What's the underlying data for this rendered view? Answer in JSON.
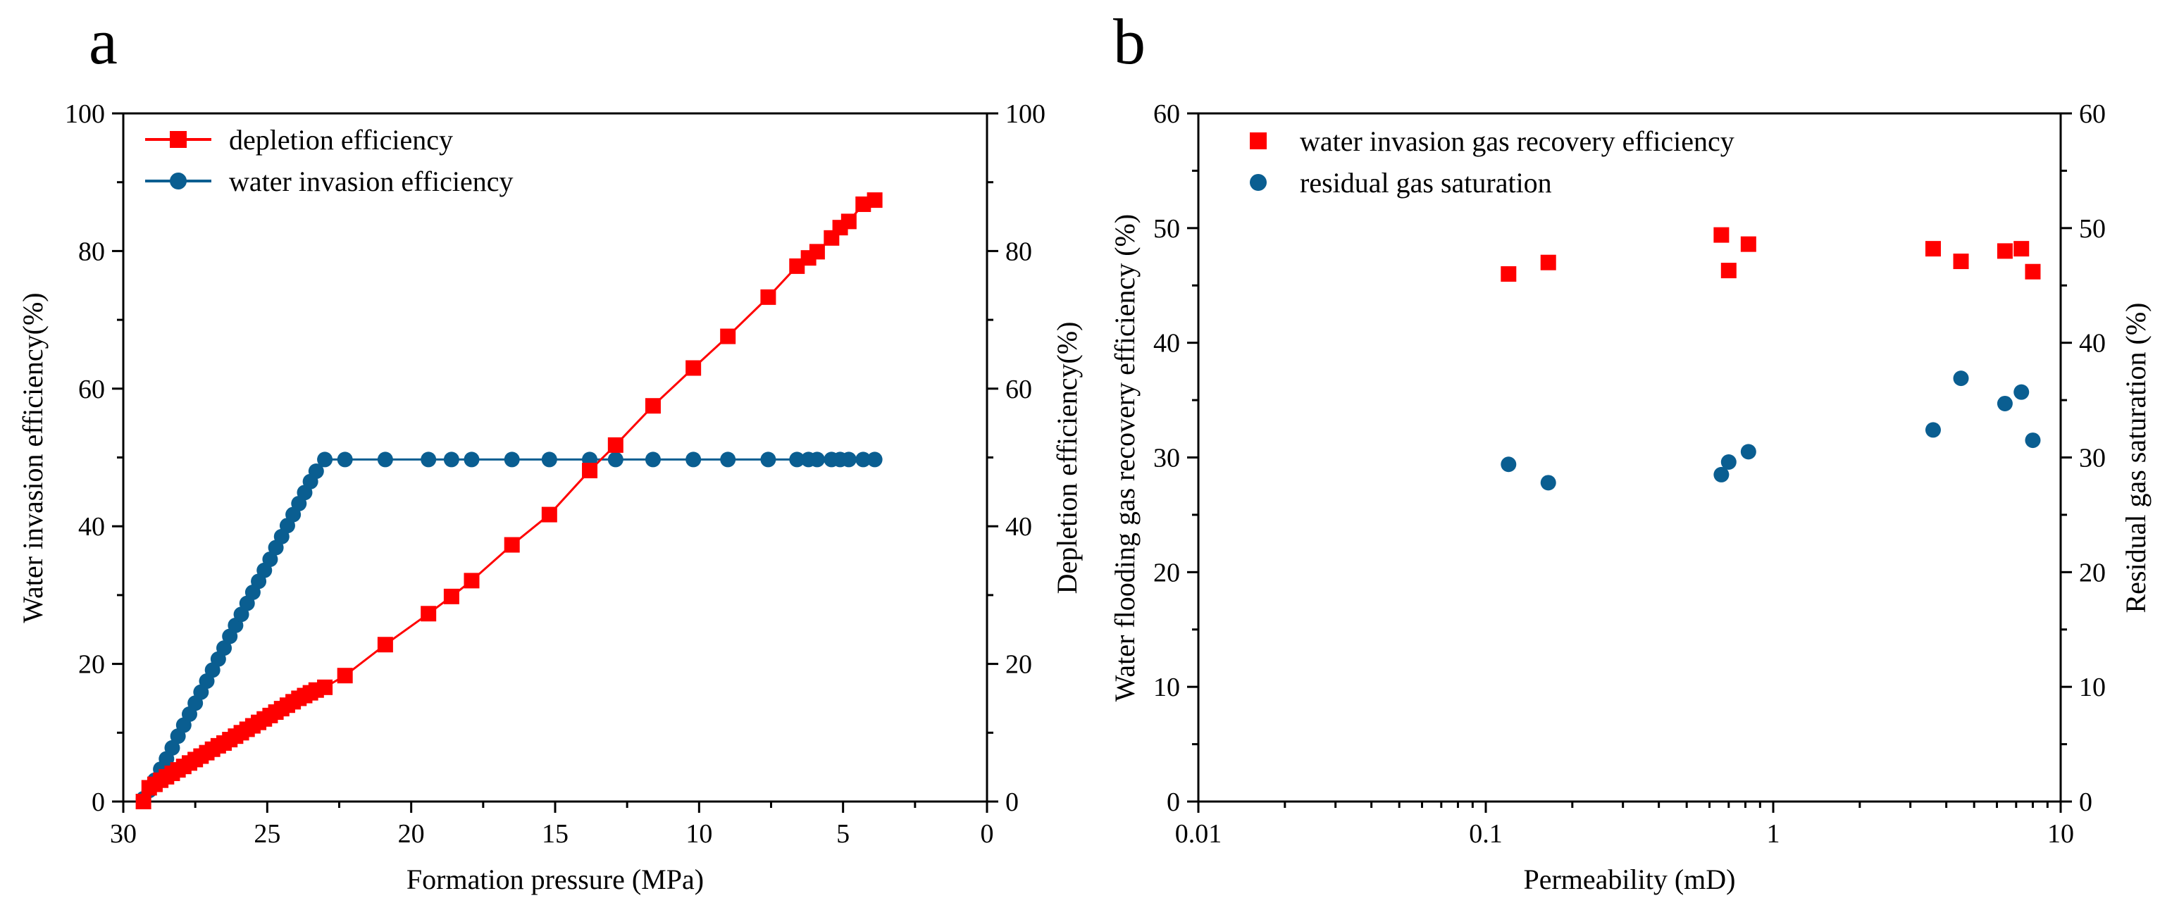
{
  "colors": {
    "red": "#ff0000",
    "blue": "#0a5e91"
  },
  "chart_data": [
    {
      "panel_label": "a",
      "type": "line",
      "xlabel": "Formation pressure (MPa)",
      "ylabel_left": "Water invasion efficiency(%)",
      "ylabel_right": "Depletion efficiency(%)",
      "xlim": [
        30,
        0
      ],
      "ylim": [
        0,
        100
      ],
      "x_ticks": [
        30,
        25,
        20,
        15,
        10,
        5,
        0
      ],
      "y_ticks": [
        0,
        20,
        40,
        60,
        80,
        100
      ],
      "legend_position": "top-left",
      "series": [
        {
          "name": "depletion efficiency",
          "marker": "square",
          "x": [
            29.3,
            29.1,
            28.9,
            28.7,
            28.5,
            28.3,
            28.1,
            27.9,
            27.7,
            27.5,
            27.3,
            27.1,
            26.9,
            26.7,
            26.5,
            26.3,
            26.1,
            25.9,
            25.7,
            25.5,
            25.3,
            25.1,
            24.9,
            24.7,
            24.5,
            24.3,
            24.1,
            23.9,
            23.7,
            23.5,
            23.3,
            23.0,
            22.3,
            20.9,
            19.4,
            18.6,
            17.9,
            16.5,
            15.2,
            13.8,
            12.9,
            11.6,
            10.2,
            9.0,
            7.6,
            6.6,
            6.2,
            5.9,
            5.4,
            5.1,
            4.8,
            4.3,
            3.9
          ],
          "values": [
            0.0,
            2.0,
            2.5,
            3.1,
            3.6,
            4.1,
            4.6,
            5.1,
            5.6,
            6.1,
            6.6,
            7.1,
            7.6,
            8.1,
            8.5,
            9.0,
            9.5,
            10.0,
            10.5,
            11.0,
            11.5,
            12.0,
            12.5,
            13.0,
            13.5,
            14.0,
            14.5,
            15.0,
            15.4,
            15.8,
            16.2,
            16.6,
            18.3,
            22.8,
            27.3,
            29.8,
            32.1,
            37.3,
            41.7,
            48.1,
            51.8,
            57.5,
            63.0,
            67.6,
            73.3,
            77.8,
            79.0,
            79.9,
            81.9,
            83.4,
            84.3,
            86.8,
            87.4
          ]
        },
        {
          "name": "water invasion efficiency",
          "marker": "circle",
          "x": [
            29.3,
            29.1,
            28.9,
            28.7,
            28.5,
            28.3,
            28.1,
            27.9,
            27.7,
            27.5,
            27.3,
            27.1,
            26.9,
            26.7,
            26.5,
            26.3,
            26.1,
            25.9,
            25.7,
            25.5,
            25.3,
            25.1,
            24.9,
            24.7,
            24.5,
            24.3,
            24.1,
            23.9,
            23.7,
            23.5,
            23.3,
            23.0,
            22.3,
            20.9,
            19.4,
            18.6,
            17.9,
            16.5,
            15.2,
            13.8,
            12.9,
            11.6,
            10.2,
            9.0,
            7.6,
            6.6,
            6.2,
            5.9,
            5.4,
            5.1,
            4.8,
            4.3,
            3.9
          ],
          "values": [
            0.4,
            1.6,
            3.1,
            4.7,
            6.2,
            7.8,
            9.5,
            11.1,
            12.7,
            14.3,
            15.9,
            17.5,
            19.1,
            20.7,
            22.3,
            24.0,
            25.6,
            27.2,
            28.8,
            30.4,
            32.0,
            33.6,
            35.2,
            36.9,
            38.5,
            40.1,
            41.7,
            43.3,
            44.9,
            46.5,
            48.0,
            49.7,
            49.7,
            49.7,
            49.7,
            49.7,
            49.7,
            49.7,
            49.7,
            49.7,
            49.7,
            49.7,
            49.7,
            49.7,
            49.7,
            49.7,
            49.7,
            49.7,
            49.7,
            49.7,
            49.7,
            49.7,
            49.7
          ]
        }
      ]
    },
    {
      "panel_label": "b",
      "type": "scatter",
      "xlabel": "Permeability (mD)",
      "ylabel_left": "Water flooding gas recovery efficiency (%)",
      "ylabel_right": "Residual gas saturation (%)",
      "x_scale": "log",
      "xlim": [
        0.01,
        10
      ],
      "ylim": [
        0,
        60
      ],
      "x_ticks": [
        0.01,
        0.1,
        1,
        10
      ],
      "x_tick_labels": [
        "0.01",
        "0.1",
        "1",
        "10"
      ],
      "y_ticks": [
        0,
        10,
        20,
        30,
        40,
        50,
        60
      ],
      "legend_position": "top-left",
      "series": [
        {
          "name": "water invasion gas recovery efficiency",
          "marker": "square",
          "x": [
            0.12,
            0.165,
            0.66,
            0.7,
            0.82,
            3.6,
            4.5,
            6.4,
            7.3,
            8.0
          ],
          "values": [
            46.0,
            47.0,
            49.4,
            46.3,
            48.6,
            48.2,
            47.1,
            48.0,
            48.2,
            46.2
          ]
        },
        {
          "name": "residual gas saturation",
          "marker": "circle",
          "x": [
            0.12,
            0.165,
            0.66,
            0.7,
            0.82,
            3.6,
            4.5,
            6.4,
            7.3,
            8.0
          ],
          "values": [
            29.4,
            27.8,
            28.5,
            29.6,
            30.5,
            32.4,
            36.9,
            34.7,
            35.7,
            31.5
          ]
        }
      ]
    }
  ]
}
